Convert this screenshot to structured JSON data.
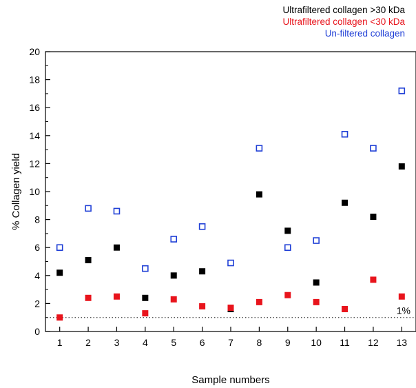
{
  "chart_data": {
    "type": "scatter",
    "xlabel": "Sample numbers",
    "ylabel": "% Collagen yield",
    "xlim": [
      0.5,
      13.5
    ],
    "ylim": [
      0,
      20
    ],
    "x_ticks": [
      1,
      2,
      3,
      4,
      5,
      6,
      7,
      8,
      9,
      10,
      11,
      12,
      13
    ],
    "y_ticks": [
      0,
      2,
      4,
      6,
      8,
      10,
      12,
      14,
      16,
      18,
      20
    ],
    "grid": false,
    "legend_position": "top-right, above plot",
    "reference_line": {
      "y": 1,
      "label": "1%",
      "style": "dotted"
    },
    "series": [
      {
        "name": "Ultrafiltered collagen >30 kDa",
        "color": "#000000",
        "marker": "filled-square",
        "x": [
          1,
          2,
          3,
          4,
          5,
          6,
          7,
          8,
          9,
          10,
          11,
          12,
          13
        ],
        "values": [
          4.2,
          5.1,
          6.0,
          2.4,
          4.0,
          4.3,
          1.6,
          9.8,
          7.2,
          3.5,
          9.2,
          8.2,
          11.8
        ]
      },
      {
        "name": "Ultrafiltered collagen <30 kDa",
        "color": "#e8141c",
        "marker": "filled-square",
        "x": [
          1,
          2,
          3,
          4,
          5,
          6,
          7,
          8,
          9,
          10,
          11,
          12,
          13
        ],
        "values": [
          1.0,
          2.4,
          2.5,
          1.3,
          2.3,
          1.8,
          1.7,
          2.1,
          2.6,
          2.1,
          1.6,
          3.7,
          2.5
        ]
      },
      {
        "name": "Un-filtered collagen",
        "color": "#1f3fd6",
        "marker": "open-square",
        "x": [
          1,
          2,
          3,
          4,
          5,
          6,
          7,
          8,
          9,
          10,
          11,
          12,
          13
        ],
        "values": [
          6.0,
          8.8,
          8.6,
          4.5,
          6.6,
          7.5,
          4.9,
          13.1,
          6.0,
          6.5,
          14.1,
          13.1,
          17.2
        ]
      }
    ]
  }
}
